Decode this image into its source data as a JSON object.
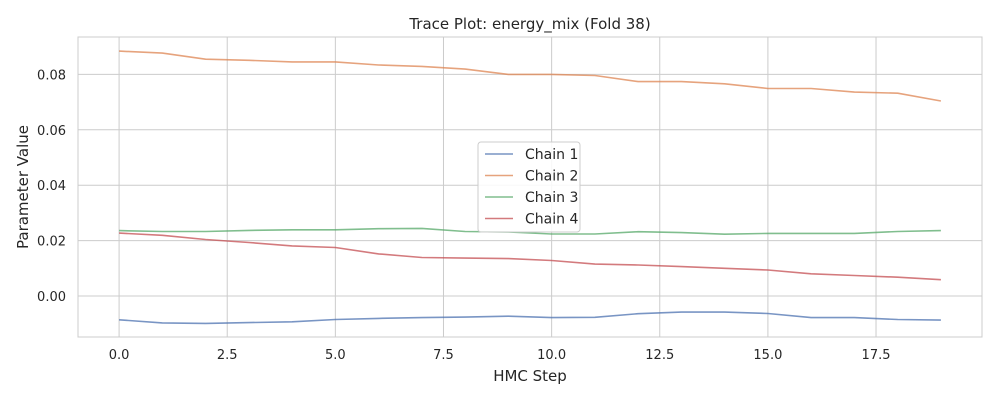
{
  "chart_data": {
    "type": "line",
    "title": "Trace Plot: energy_mix (Fold 38)",
    "xlabel": "HMC Step",
    "ylabel": "Parameter Value",
    "xlim": [
      -0.95,
      19.95
    ],
    "ylim": [
      -0.0148,
      0.0935
    ],
    "xticks": [
      0.0,
      2.5,
      5.0,
      7.5,
      10.0,
      12.5,
      15.0,
      17.5
    ],
    "xtick_labels": [
      "0.0",
      "2.5",
      "5.0",
      "7.5",
      "10.0",
      "12.5",
      "15.0",
      "17.5"
    ],
    "yticks": [
      0.0,
      0.02,
      0.04,
      0.06,
      0.08
    ],
    "ytick_labels": [
      "0.00",
      "0.02",
      "0.04",
      "0.06",
      "0.08"
    ],
    "grid": true,
    "legend_position": "center",
    "x": [
      0,
      1,
      2,
      3,
      4,
      5,
      6,
      7,
      8,
      9,
      10,
      11,
      12,
      13,
      14,
      15,
      16,
      17,
      18,
      19
    ],
    "series": [
      {
        "name": "Chain 1",
        "color": "#4c72b0",
        "values": [
          -0.0086,
          -0.0097,
          -0.0099,
          -0.0096,
          -0.0093,
          -0.0085,
          -0.0081,
          -0.0078,
          -0.0076,
          -0.0073,
          -0.0078,
          -0.0077,
          -0.0064,
          -0.0058,
          -0.0058,
          -0.0063,
          -0.0078,
          -0.0078,
          -0.0085,
          -0.0087
        ]
      },
      {
        "name": "Chain 2",
        "color": "#dd8452",
        "values": [
          0.0884,
          0.0877,
          0.0855,
          0.0851,
          0.0845,
          0.0845,
          0.0834,
          0.0829,
          0.0819,
          0.08,
          0.08,
          0.0796,
          0.0774,
          0.0774,
          0.0766,
          0.0749,
          0.0749,
          0.0736,
          0.0732,
          0.0704
        ]
      },
      {
        "name": "Chain 3",
        "color": "#55a868",
        "values": [
          0.0236,
          0.0233,
          0.0233,
          0.0237,
          0.0239,
          0.0239,
          0.0243,
          0.0244,
          0.0233,
          0.0231,
          0.0224,
          0.0224,
          0.0232,
          0.0229,
          0.0223,
          0.0226,
          0.0226,
          0.0226,
          0.0233,
          0.0236
        ]
      },
      {
        "name": "Chain 4",
        "color": "#c44e52",
        "values": [
          0.0227,
          0.0219,
          0.0204,
          0.0193,
          0.0181,
          0.0175,
          0.0152,
          0.0139,
          0.0137,
          0.0135,
          0.0128,
          0.0115,
          0.0112,
          0.0106,
          0.01,
          0.0094,
          0.008,
          0.0074,
          0.0068,
          0.0059
        ]
      }
    ]
  }
}
